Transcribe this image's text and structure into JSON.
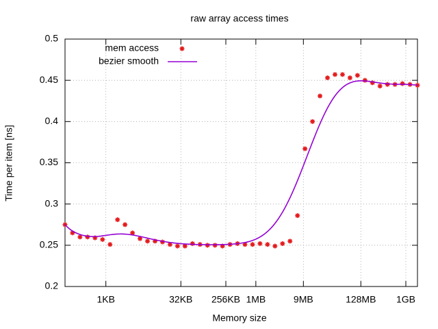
{
  "chart_data": {
    "type": "scatter",
    "title": "raw array access times",
    "x_label": "Memory size",
    "y_label": "Time per item [ns]",
    "x": [
      155,
      219,
      310,
      438,
      620,
      877,
      1240,
      1754,
      2480,
      3507,
      4960,
      7014,
      9920,
      14029,
      19840,
      28058,
      39680,
      56116,
      79360,
      112232,
      158720,
      224464,
      317440,
      448928,
      634880,
      897856,
      1269760,
      1795712,
      2539520,
      3591424,
      5079040,
      7182848,
      10158080,
      14365696,
      20316160,
      28731392,
      40632320,
      57462784,
      81264640,
      114925568,
      162529280,
      229851136,
      325058560,
      459702272,
      650117120,
      919404544,
      1300234240,
      1838809000
    ],
    "series": [
      {
        "name": "mem access",
        "color": "#e41a1c",
        "values": [
          0.275,
          0.265,
          0.26,
          0.26,
          0.259,
          0.257,
          0.251,
          0.281,
          0.275,
          0.265,
          0.258,
          0.255,
          0.255,
          0.254,
          0.251,
          0.249,
          0.249,
          0.252,
          0.251,
          0.25,
          0.25,
          0.249,
          0.251,
          0.252,
          0.251,
          0.251,
          0.252,
          0.251,
          0.249,
          0.252,
          0.255,
          0.286,
          0.367,
          0.4,
          0.431,
          0.453,
          0.457,
          0.457,
          0.453,
          0.456,
          0.45,
          0.447,
          0.443,
          0.445,
          0.445,
          0.446,
          0.445,
          0.444
        ]
      },
      {
        "name": "bezier smooth",
        "color": "#9400d3",
        "smooth": "bezier"
      }
    ],
    "xscale": "log",
    "xlim": [
      155,
      1838809000
    ],
    "xticks": [
      {
        "value": 1024,
        "label": "1KB"
      },
      {
        "value": 32768,
        "label": "32KB"
      },
      {
        "value": 262144,
        "label": "256KB"
      },
      {
        "value": 1048576,
        "label": "1MB"
      },
      {
        "value": 9437184,
        "label": "9MB"
      },
      {
        "value": 134217728,
        "label": "128MB"
      },
      {
        "value": 1073741824,
        "label": "1GB"
      }
    ],
    "ylim": [
      0.2,
      0.5
    ],
    "yticks": [
      0.2,
      0.25,
      0.3,
      0.35,
      0.4,
      0.45,
      0.5
    ],
    "grid": true,
    "legend": "top-left"
  }
}
